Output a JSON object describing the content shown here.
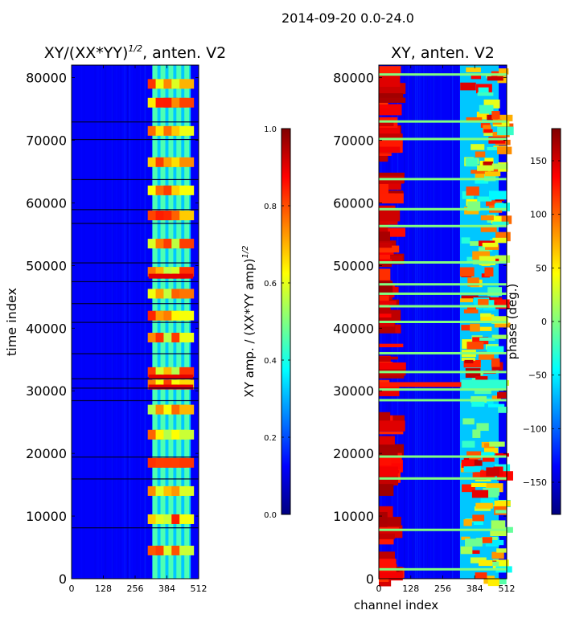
{
  "suptitle": "2014-09-20 0.0-24.0",
  "chart_data": [
    {
      "type": "heatmap",
      "title": "XY/(XX*YY)",
      "title_exponent": "1/2",
      "title_suffix": ", anten. V2",
      "xlabel": "",
      "ylabel": "time index",
      "xlim": [
        0,
        512
      ],
      "ylim": [
        0,
        82000
      ],
      "x_ticks": [
        0,
        128,
        256,
        384,
        512
      ],
      "y_ticks": [
        0,
        10000,
        20000,
        30000,
        40000,
        50000,
        60000,
        70000,
        80000
      ],
      "bright_channel_range": [
        325,
        480
      ],
      "bright_columns": [
        336,
        368,
        400,
        432,
        464
      ],
      "gap_rows": [
        8200,
        16000,
        19500,
        28500,
        30500,
        32000,
        36000,
        41000,
        44000,
        47500,
        50500,
        56800,
        59000,
        63800,
        70200,
        73000
      ],
      "band_rows": [
        4500,
        9500,
        14000,
        18500,
        23000,
        27000,
        31000,
        33000,
        38500,
        42000,
        45500,
        49000,
        53500,
        58000,
        62000,
        66500,
        71500,
        76000,
        79000
      ],
      "colorbar": {
        "label": "XY amp. / (XX*YY amp)",
        "label_exponent": "1/2",
        "range": [
          0.0,
          1.0
        ],
        "ticks": [
          "0.0",
          "0.2",
          "0.4",
          "0.6",
          "0.8",
          "1.0"
        ],
        "tick_values": [
          0.0,
          0.2,
          0.4,
          0.6,
          0.8,
          1.0
        ]
      }
    },
    {
      "type": "heatmap",
      "title": "XY, anten. V2",
      "xlabel": "channel index",
      "ylabel": "",
      "xlim": [
        0,
        512
      ],
      "ylim": [
        0,
        82000
      ],
      "x_ticks": [
        0,
        128,
        256,
        384,
        512
      ],
      "y_ticks": [
        0,
        10000,
        20000,
        30000,
        40000,
        50000,
        60000,
        70000,
        80000
      ],
      "bright_channel_range": [
        325,
        480
      ],
      "low_channel_red_range": [
        0,
        110
      ],
      "gap_rows": [
        1500,
        7800,
        16000,
        19500,
        28500,
        30200,
        33000,
        36000,
        41000,
        43500,
        45500,
        47000,
        50500,
        56300,
        59000,
        63800,
        70200,
        73000,
        80500
      ],
      "streak_row": 31000,
      "colorbar": {
        "label": "phase (deg.)",
        "range": [
          -180,
          180
        ],
        "ticks": [
          "150",
          "100",
          "50",
          "0",
          "−50",
          "−100",
          "−150"
        ],
        "tick_values": [
          150,
          100,
          50,
          0,
          -50,
          -100,
          -150
        ]
      }
    }
  ]
}
